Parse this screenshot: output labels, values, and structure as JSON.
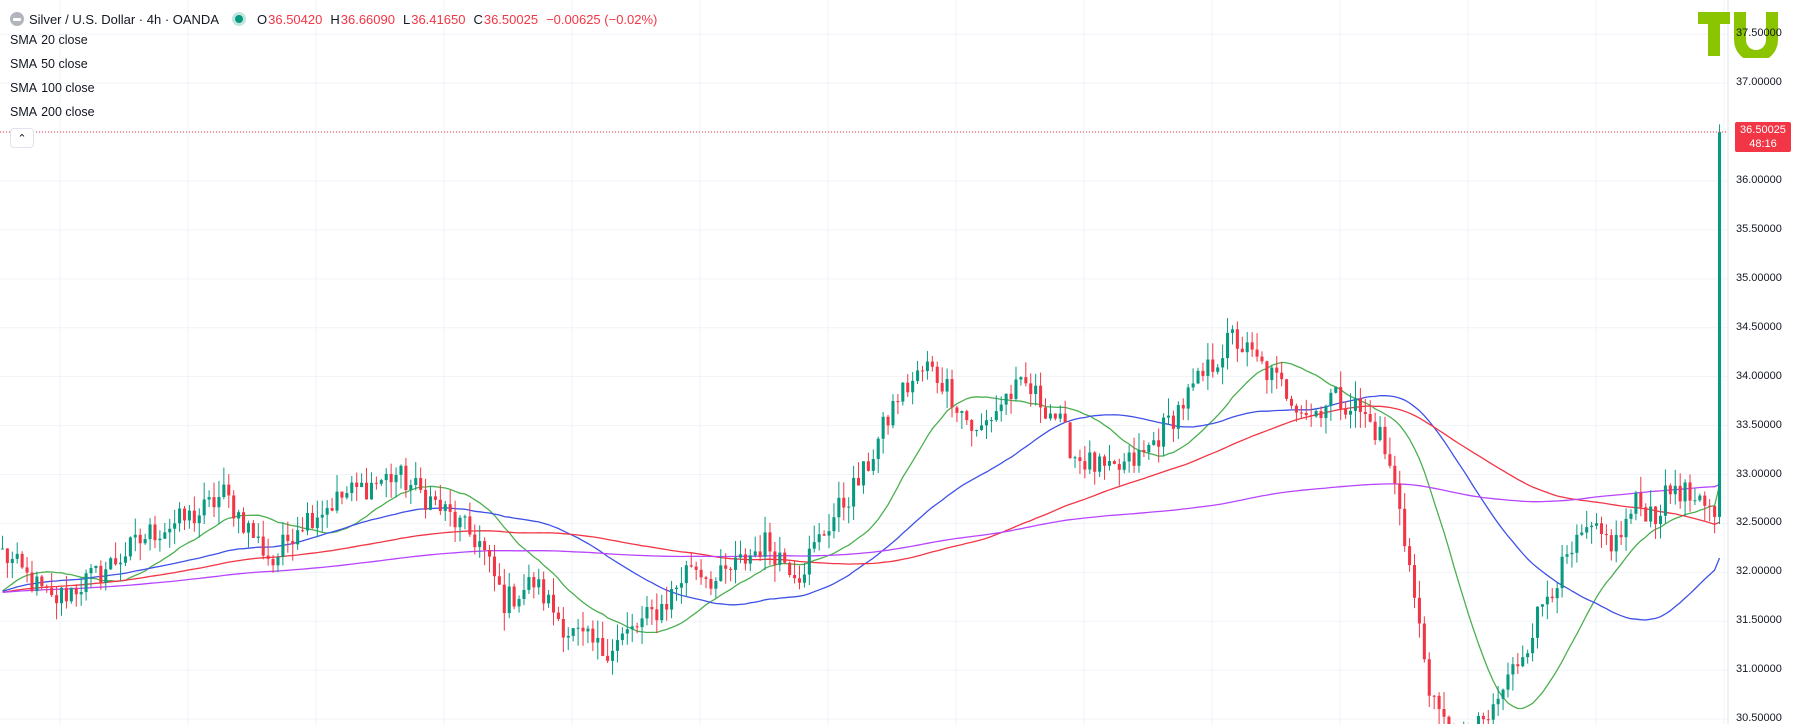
{
  "header": {
    "symbol_title": "Silver / U.S. Dollar · 4h · OANDA",
    "ohlc": [
      {
        "key": "O",
        "value": "36.50420"
      },
      {
        "key": "H",
        "value": "36.66090"
      },
      {
        "key": "L",
        "value": "36.41650"
      },
      {
        "key": "C",
        "value": "36.50025"
      },
      {
        "key": "",
        "value": "−0.00625 (−0.02%)"
      }
    ]
  },
  "indicators": [
    {
      "name": "SMA",
      "params": "20 close",
      "color": "#4caf50"
    },
    {
      "name": "SMA",
      "params": "50 close",
      "color": "#3f51e8"
    },
    {
      "name": "SMA",
      "params": "100 close",
      "color": "#f23645"
    },
    {
      "name": "SMA",
      "params": "200 close",
      "color": "#b845ff"
    }
  ],
  "collapse_glyph": "⌃",
  "last_price": {
    "value": "36.50025",
    "countdown": "48:16"
  },
  "colors": {
    "up": "#089981",
    "down": "#f23645",
    "grid": "#f0f3fa",
    "last_line": "#f23645",
    "logo": "#8bc400"
  },
  "chart_data": {
    "type": "candlestick",
    "title": "Silver / U.S. Dollar · 4h · OANDA",
    "ylim": [
      30.45,
      37.85
    ],
    "y_ticks": [
      "30.50000",
      "31.00000",
      "31.50000",
      "32.00000",
      "32.50000",
      "33.00000",
      "33.50000",
      "34.00000",
      "34.50000",
      "35.00000",
      "35.50000",
      "36.00000",
      "36.50000",
      "37.00000",
      "37.50000"
    ],
    "last_close": 36.50025,
    "candle_count": 350,
    "close_keypoints": [
      [
        0,
        32.2
      ],
      [
        10,
        31.7
      ],
      [
        20,
        32.0
      ],
      [
        30,
        32.4
      ],
      [
        40,
        32.6
      ],
      [
        45,
        32.8
      ],
      [
        55,
        32.1
      ],
      [
        60,
        32.5
      ],
      [
        70,
        32.8
      ],
      [
        80,
        33.0
      ],
      [
        88,
        32.7
      ],
      [
        97,
        32.3
      ],
      [
        102,
        31.7
      ],
      [
        108,
        31.9
      ],
      [
        115,
        31.4
      ],
      [
        122,
        31.2
      ],
      [
        128,
        31.4
      ],
      [
        135,
        31.7
      ],
      [
        140,
        32.1
      ],
      [
        145,
        31.9
      ],
      [
        155,
        32.3
      ],
      [
        162,
        32.0
      ],
      [
        168,
        32.5
      ],
      [
        175,
        33.0
      ],
      [
        182,
        33.8
      ],
      [
        188,
        34.1
      ],
      [
        192,
        33.9
      ],
      [
        198,
        33.4
      ],
      [
        204,
        33.8
      ],
      [
        208,
        33.9
      ],
      [
        214,
        33.6
      ],
      [
        218,
        33.2
      ],
      [
        225,
        33.0
      ],
      [
        232,
        33.2
      ],
      [
        238,
        33.6
      ],
      [
        244,
        34.0
      ],
      [
        250,
        34.4
      ],
      [
        254,
        34.2
      ],
      [
        260,
        33.9
      ],
      [
        266,
        33.6
      ],
      [
        270,
        33.8
      ],
      [
        275,
        33.7
      ],
      [
        280,
        33.4
      ],
      [
        284,
        32.7
      ],
      [
        288,
        31.4
      ],
      [
        291,
        30.6
      ],
      [
        296,
        30.2
      ],
      [
        302,
        30.5
      ],
      [
        306,
        30.9
      ],
      [
        310,
        31.3
      ],
      [
        314,
        31.8
      ],
      [
        318,
        32.1
      ],
      [
        322,
        32.4
      ],
      [
        328,
        32.3
      ],
      [
        332,
        32.7
      ],
      [
        336,
        32.6
      ],
      [
        340,
        32.9
      ],
      [
        346,
        32.6
      ]
    ]
  }
}
